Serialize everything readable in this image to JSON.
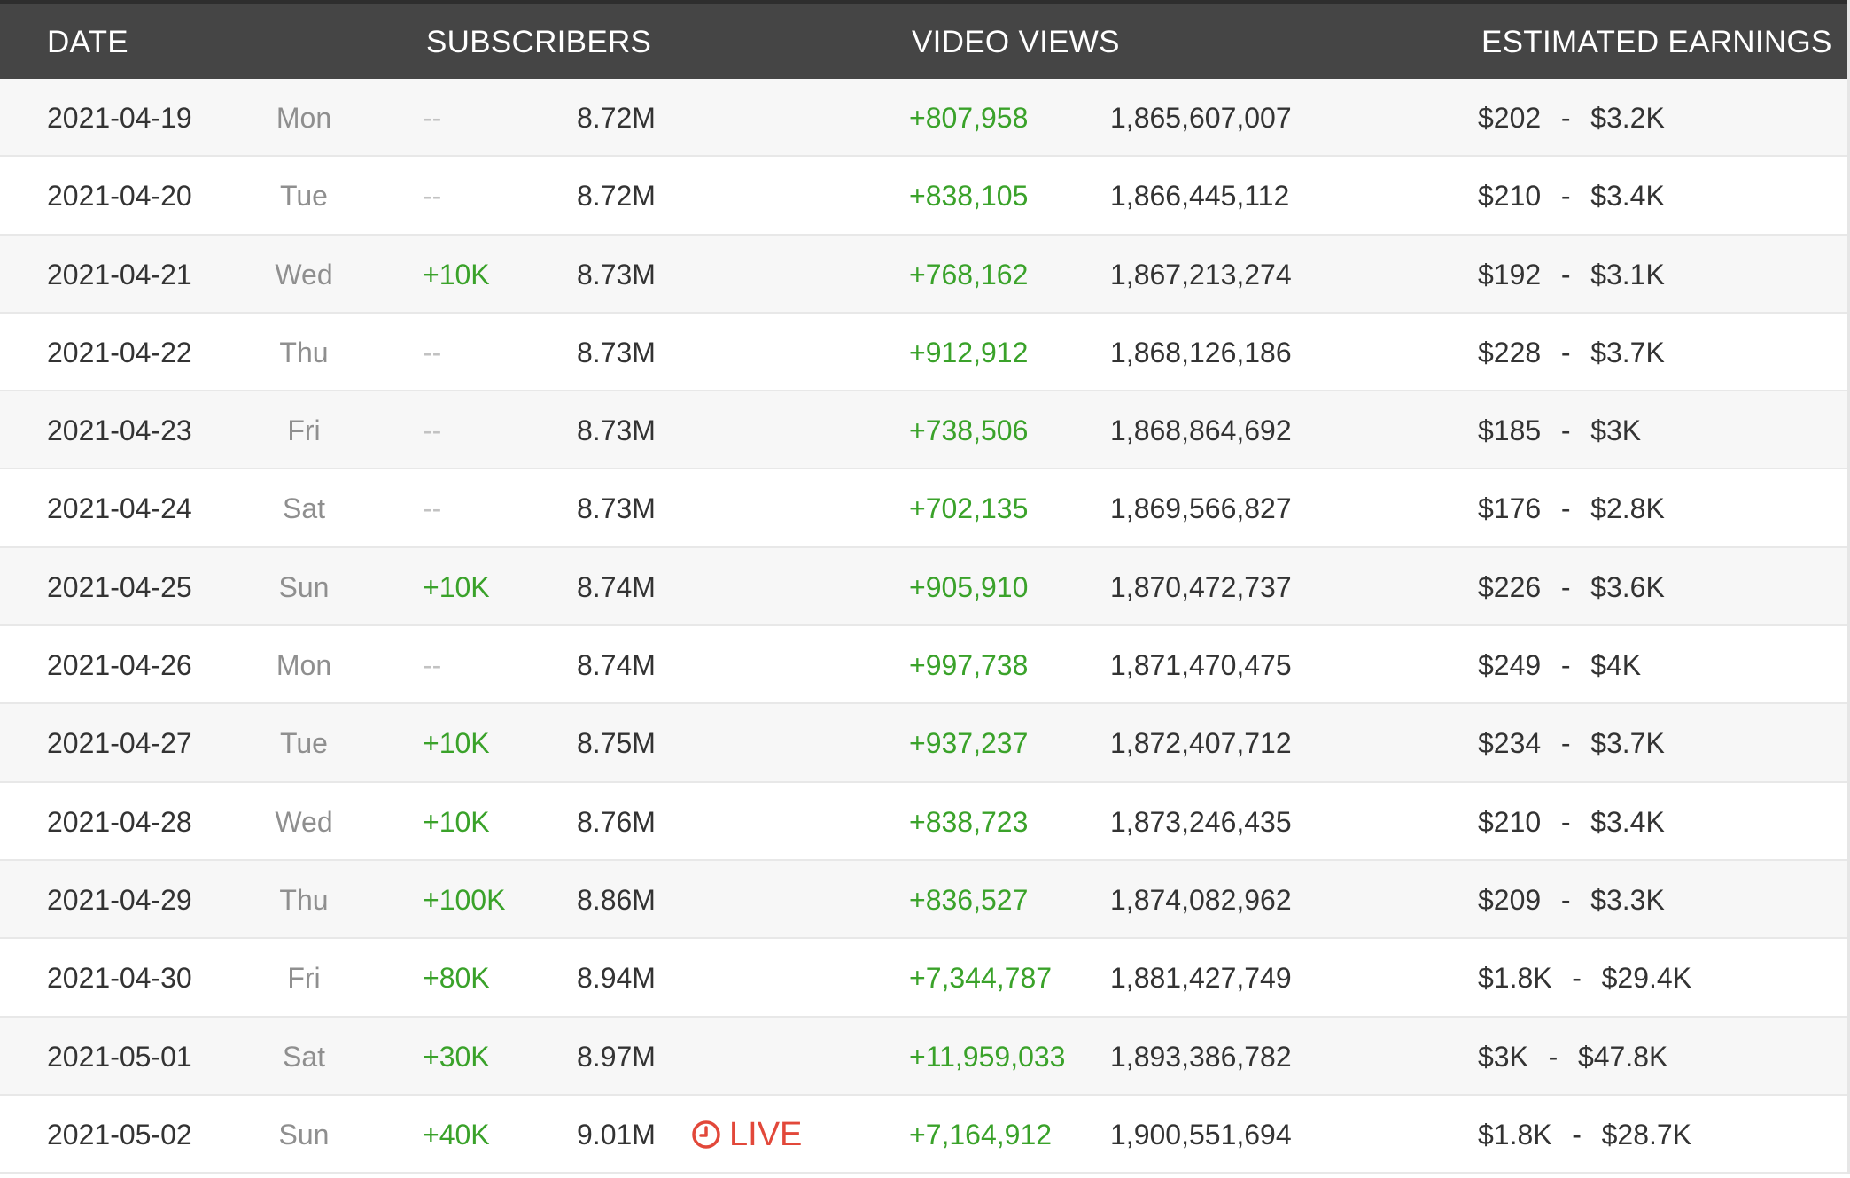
{
  "header": {
    "date": "DATE",
    "subscribers": "SUBSCRIBERS",
    "video_views": "VIDEO VIEWS",
    "estimated_earnings": "ESTIMATED EARNINGS"
  },
  "colors": {
    "header_bg": "#454545",
    "positive": "#3aa22a",
    "live": "#e2483a",
    "muted": "#8f8f8f"
  },
  "live_label": "LIVE",
  "rows": [
    {
      "date": "2021-04-19",
      "day": "Mon",
      "sub_delta": "--",
      "subs": "8.72M",
      "live": false,
      "views_delta": "+807,958",
      "views": "1,865,607,007",
      "earn_low": "$202",
      "earn_sep": "-",
      "earn_high": "$3.2K"
    },
    {
      "date": "2021-04-20",
      "day": "Tue",
      "sub_delta": "--",
      "subs": "8.72M",
      "live": false,
      "views_delta": "+838,105",
      "views": "1,866,445,112",
      "earn_low": "$210",
      "earn_sep": "-",
      "earn_high": "$3.4K"
    },
    {
      "date": "2021-04-21",
      "day": "Wed",
      "sub_delta": "+10K",
      "subs": "8.73M",
      "live": false,
      "views_delta": "+768,162",
      "views": "1,867,213,274",
      "earn_low": "$192",
      "earn_sep": "-",
      "earn_high": "$3.1K"
    },
    {
      "date": "2021-04-22",
      "day": "Thu",
      "sub_delta": "--",
      "subs": "8.73M",
      "live": false,
      "views_delta": "+912,912",
      "views": "1,868,126,186",
      "earn_low": "$228",
      "earn_sep": "-",
      "earn_high": "$3.7K"
    },
    {
      "date": "2021-04-23",
      "day": "Fri",
      "sub_delta": "--",
      "subs": "8.73M",
      "live": false,
      "views_delta": "+738,506",
      "views": "1,868,864,692",
      "earn_low": "$185",
      "earn_sep": "-",
      "earn_high": "$3K"
    },
    {
      "date": "2021-04-24",
      "day": "Sat",
      "sub_delta": "--",
      "subs": "8.73M",
      "live": false,
      "views_delta": "+702,135",
      "views": "1,869,566,827",
      "earn_low": "$176",
      "earn_sep": "-",
      "earn_high": "$2.8K"
    },
    {
      "date": "2021-04-25",
      "day": "Sun",
      "sub_delta": "+10K",
      "subs": "8.74M",
      "live": false,
      "views_delta": "+905,910",
      "views": "1,870,472,737",
      "earn_low": "$226",
      "earn_sep": "-",
      "earn_high": "$3.6K"
    },
    {
      "date": "2021-04-26",
      "day": "Mon",
      "sub_delta": "--",
      "subs": "8.74M",
      "live": false,
      "views_delta": "+997,738",
      "views": "1,871,470,475",
      "earn_low": "$249",
      "earn_sep": "-",
      "earn_high": "$4K"
    },
    {
      "date": "2021-04-27",
      "day": "Tue",
      "sub_delta": "+10K",
      "subs": "8.75M",
      "live": false,
      "views_delta": "+937,237",
      "views": "1,872,407,712",
      "earn_low": "$234",
      "earn_sep": "-",
      "earn_high": "$3.7K"
    },
    {
      "date": "2021-04-28",
      "day": "Wed",
      "sub_delta": "+10K",
      "subs": "8.76M",
      "live": false,
      "views_delta": "+838,723",
      "views": "1,873,246,435",
      "earn_low": "$210",
      "earn_sep": "-",
      "earn_high": "$3.4K"
    },
    {
      "date": "2021-04-29",
      "day": "Thu",
      "sub_delta": "+100K",
      "subs": "8.86M",
      "live": false,
      "views_delta": "+836,527",
      "views": "1,874,082,962",
      "earn_low": "$209",
      "earn_sep": "-",
      "earn_high": "$3.3K"
    },
    {
      "date": "2021-04-30",
      "day": "Fri",
      "sub_delta": "+80K",
      "subs": "8.94M",
      "live": false,
      "views_delta": "+7,344,787",
      "views": "1,881,427,749",
      "earn_low": "$1.8K",
      "earn_sep": "-",
      "earn_high": "$29.4K"
    },
    {
      "date": "2021-05-01",
      "day": "Sat",
      "sub_delta": "+30K",
      "subs": "8.97M",
      "live": false,
      "views_delta": "+11,959,033",
      "views": "1,893,386,782",
      "earn_low": "$3K",
      "earn_sep": "-",
      "earn_high": "$47.8K"
    },
    {
      "date": "2021-05-02",
      "day": "Sun",
      "sub_delta": "+40K",
      "subs": "9.01M",
      "live": true,
      "views_delta": "+7,164,912",
      "views": "1,900,551,694",
      "earn_low": "$1.8K",
      "earn_sep": "-",
      "earn_high": "$28.7K"
    }
  ]
}
